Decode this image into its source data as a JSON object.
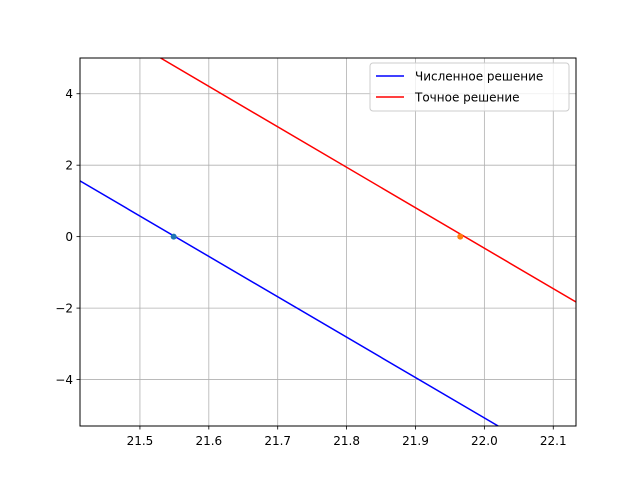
{
  "chart_data": {
    "type": "line",
    "title": "",
    "xlabel": "",
    "ylabel": "",
    "xlim": [
      21.413,
      22.133
    ],
    "ylim": [
      -5.3,
      5.0
    ],
    "grid": true,
    "legend_position": "top-right",
    "x_ticks": [
      21.5,
      21.6,
      21.7,
      21.8,
      21.9,
      22.0,
      22.1
    ],
    "x_tick_labels": [
      "21.5",
      "21.6",
      "21.7",
      "21.8",
      "21.9",
      "22.0",
      "22.1"
    ],
    "y_ticks": [
      -4,
      -2,
      0,
      2,
      4
    ],
    "y_tick_labels": [
      "−4",
      "−2",
      "0",
      "2",
      "4"
    ],
    "series": [
      {
        "name": "Численное решение",
        "color": "#0000ff",
        "x": [
          21.413,
          22.02
        ],
        "y": [
          1.56,
          -5.3
        ]
      },
      {
        "name": "Точное решение",
        "color": "#ff0000",
        "x": [
          21.53,
          22.133
        ],
        "y": [
          5.0,
          -1.83
        ]
      }
    ],
    "markers": [
      {
        "x": 21.549,
        "y": 0,
        "color": "#1f77b4"
      },
      {
        "x": 21.965,
        "y": 0,
        "color": "#ff7f0e"
      }
    ]
  }
}
